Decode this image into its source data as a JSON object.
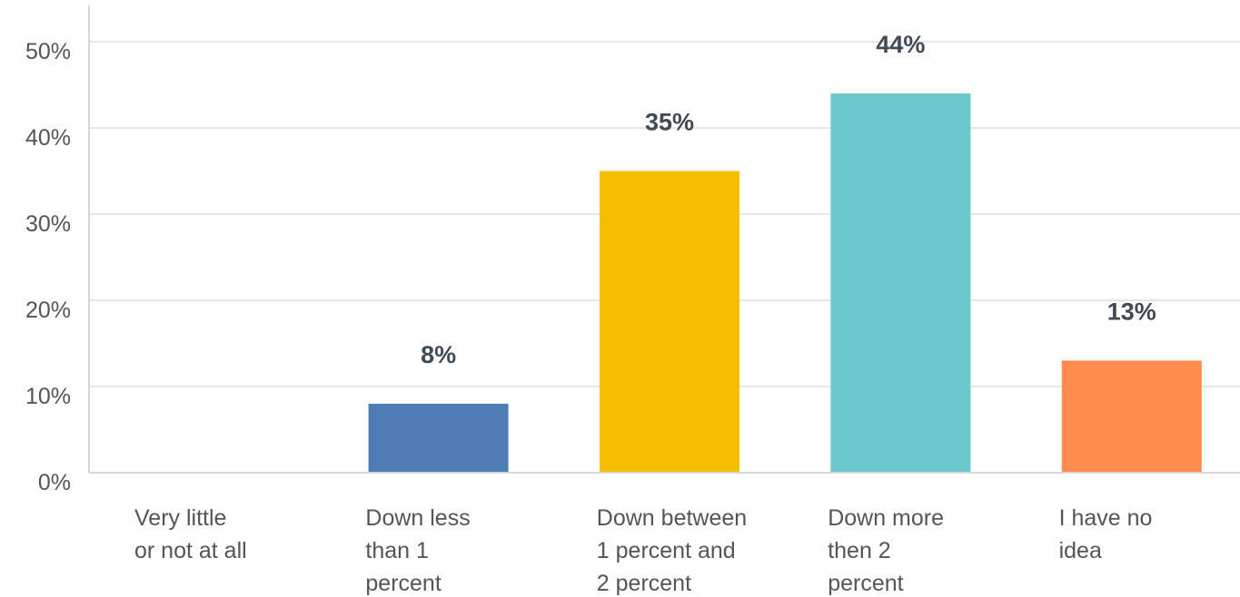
{
  "chart_data": {
    "type": "bar",
    "categories": [
      [
        "Very little",
        "or not at all"
      ],
      [
        "Down less",
        "than 1",
        "percent"
      ],
      [
        "Down between",
        "1 percent and",
        "2 percent"
      ],
      [
        "Down more",
        "then 2",
        "percent"
      ],
      [
        "I have no",
        "idea"
      ]
    ],
    "values": [
      0,
      8,
      35,
      44,
      13
    ],
    "data_labels": [
      "",
      "8%",
      "35%",
      "44%",
      "13%"
    ],
    "colors": [
      "#507cb6",
      "#507cb6",
      "#f7bd00",
      "#6bc8cd",
      "#ff8b4f"
    ],
    "y_ticks": [
      0,
      10,
      20,
      30,
      40,
      50
    ],
    "y_tick_labels": [
      "0%",
      "10%",
      "20%",
      "30%",
      "40%",
      "50%"
    ],
    "ylim": [
      0,
      50
    ],
    "grid": true,
    "legend": "none"
  }
}
